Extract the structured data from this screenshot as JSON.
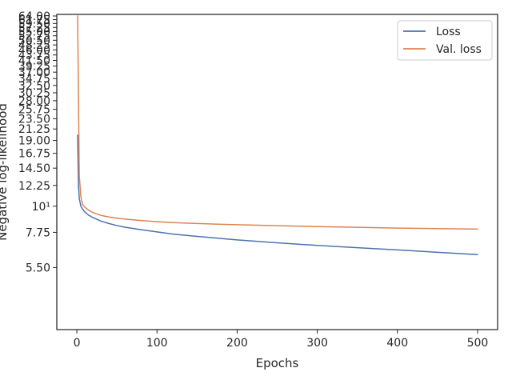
{
  "chart_data": {
    "type": "line",
    "xlabel": "Epochs",
    "ylabel": "Negative log-likelihood",
    "y_scale": "log",
    "xlim": [
      -25,
      525
    ],
    "ylim": [
      3.0,
      65.0
    ],
    "x_ticks": [
      0,
      100,
      200,
      300,
      400,
      500
    ],
    "x_tick_labels": [
      "0",
      "100",
      "200",
      "300",
      "400",
      "500"
    ],
    "y_ticks": [
      5.5,
      7.75,
      10,
      12.25,
      14.5,
      16.75,
      19.0,
      21.25,
      23.5,
      25.75,
      28.0,
      30.25,
      32.5,
      34.75,
      37.0,
      39.25,
      41.5,
      43.75,
      46.0,
      48.25,
      50.5,
      52.75,
      55.0,
      57.25,
      59.5,
      61.75,
      64.0
    ],
    "y_tick_labels": [
      "5.50",
      "7.75",
      "10¹",
      "12.25",
      "14.50",
      "16.75",
      "19.00",
      "21.25",
      "23.50",
      "25.75",
      "28.00",
      "30.25",
      "32.50",
      "34.75",
      "37.00",
      "39.25",
      "41.50",
      "43.75",
      "46.00",
      "48.25",
      "50.50",
      "52.75",
      "55.00",
      "57.25",
      "59.50",
      "61.75",
      "64.00"
    ],
    "grid": false,
    "legend_position": "top-right",
    "series": [
      {
        "name": "Loss",
        "color": "#4c72b0",
        "x": [
          1,
          2,
          3,
          5,
          7,
          10,
          15,
          20,
          30,
          40,
          50,
          60,
          80,
          100,
          120,
          150,
          180,
          200,
          250,
          300,
          350,
          400,
          450,
          500
        ],
        "y": [
          20.0,
          12.3,
          10.8,
          10.0,
          9.75,
          9.45,
          9.15,
          8.95,
          8.65,
          8.45,
          8.28,
          8.15,
          7.95,
          7.78,
          7.62,
          7.45,
          7.3,
          7.2,
          7.0,
          6.82,
          6.67,
          6.53,
          6.38,
          6.24
        ]
      },
      {
        "name": "Val. loss",
        "color": "#dd8452",
        "x": [
          1,
          2,
          3,
          5,
          7,
          10,
          15,
          20,
          30,
          40,
          50,
          60,
          80,
          100,
          120,
          150,
          180,
          200,
          250,
          300,
          350,
          400,
          450,
          500
        ],
        "y": [
          64.0,
          30.0,
          13.5,
          11.0,
          10.2,
          9.9,
          9.6,
          9.4,
          9.15,
          9.0,
          8.9,
          8.82,
          8.7,
          8.6,
          8.52,
          8.45,
          8.38,
          8.35,
          8.27,
          8.2,
          8.14,
          8.08,
          8.04,
          8.0
        ]
      }
    ]
  }
}
